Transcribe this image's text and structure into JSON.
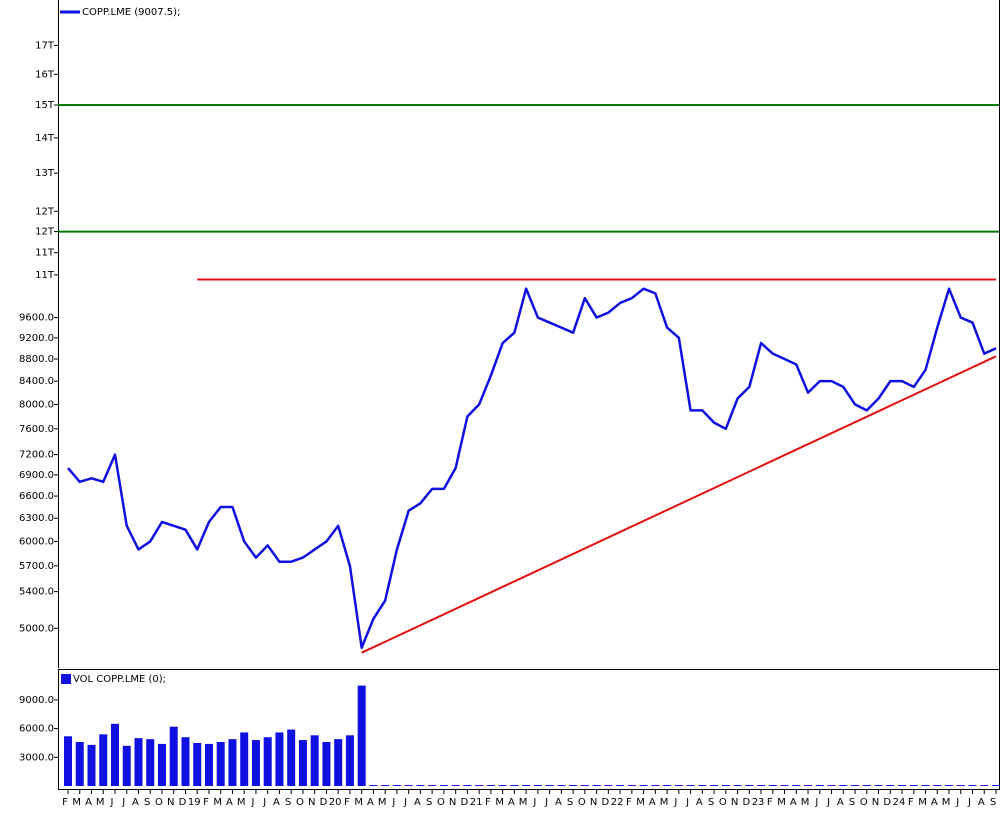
{
  "chart_data": [
    {
      "type": "line",
      "legend": "COPP.LME (9007.5);",
      "log_y": true,
      "categories": [
        "F",
        "M",
        "A",
        "M",
        "J",
        "J",
        "A",
        "S",
        "O",
        "N",
        "D",
        "19",
        "F",
        "M",
        "A",
        "M",
        "J",
        "J",
        "A",
        "S",
        "O",
        "N",
        "D",
        "20",
        "F",
        "M",
        "A",
        "M",
        "J",
        "J",
        "A",
        "S",
        "O",
        "N",
        "D",
        "21",
        "F",
        "M",
        "A",
        "M",
        "J",
        "J",
        "A",
        "S",
        "O",
        "N",
        "D",
        "22",
        "F",
        "M",
        "A",
        "M",
        "J",
        "J",
        "A",
        "S",
        "O",
        "N",
        "D",
        "23",
        "F",
        "M",
        "A",
        "M",
        "J",
        "J",
        "A",
        "S",
        "O",
        "N",
        "D",
        "24",
        "F",
        "M",
        "A",
        "M",
        "J",
        "J",
        "A",
        "S"
      ],
      "series": [
        {
          "name": "COPP.LME",
          "color": "#1010e0",
          "values": [
            7000,
            6800,
            6850,
            6800,
            7200,
            6200,
            5900,
            6000,
            6250,
            6200,
            6150,
            5900,
            6250,
            6450,
            6450,
            6000,
            5800,
            5950,
            5750,
            5750,
            5800,
            5900,
            6000,
            6200,
            5700,
            4800,
            5100,
            5300,
            5900,
            6400,
            6500,
            6700,
            6700,
            7000,
            7800,
            8000,
            8500,
            9100,
            9300,
            10200,
            9600,
            9500,
            9400,
            9300,
            10000,
            9600,
            9700,
            9900,
            10000,
            10200,
            10100,
            9400,
            9200,
            7900,
            7900,
            7700,
            7600,
            8100,
            8300,
            9100,
            8900,
            8800,
            8700,
            8200,
            8400,
            8400,
            8300,
            8000,
            7900,
            8100,
            8400,
            8400,
            8300,
            8600,
            9400,
            10200,
            9600,
            9500,
            8900,
            9000
          ]
        }
      ],
      "hlines": [
        {
          "value": 15000,
          "color": "#007a00"
        },
        {
          "value": 11500,
          "color": "#007a00"
        }
      ],
      "segments": [
        {
          "start": 11,
          "end": 79,
          "values": [
            10400,
            10400
          ],
          "color": "#e01010"
        },
        {
          "start": 25,
          "end": 79,
          "values": [
            4750,
            8850
          ],
          "color": "#e01010"
        }
      ],
      "ylim": [
        4600,
        18700
      ],
      "yticks": [
        {
          "value": 5000,
          "label": "5000.0"
        },
        {
          "value": 5400,
          "label": "5400.0"
        },
        {
          "value": 5700,
          "label": "5700.0"
        },
        {
          "value": 6000,
          "label": "6000.0"
        },
        {
          "value": 6300,
          "label": "6300.0"
        },
        {
          "value": 6600,
          "label": "6600.0"
        },
        {
          "value": 6900,
          "label": "6900.0"
        },
        {
          "value": 7200,
          "label": "7200.0"
        },
        {
          "value": 7600,
          "label": "7600.0"
        },
        {
          "value": 8000,
          "label": "8000.0"
        },
        {
          "value": 8400,
          "label": "8400.0"
        },
        {
          "value": 8800,
          "label": "8800.0"
        },
        {
          "value": 9200,
          "label": "9200.0"
        },
        {
          "value": 9600,
          "label": "9600.0"
        },
        {
          "value": 10500,
          "label": "11T"
        },
        {
          "value": 11000,
          "label": "11T"
        },
        {
          "value": 11500,
          "label": "12T"
        },
        {
          "value": 12000,
          "label": "12T"
        },
        {
          "value": 13000,
          "label": "13T"
        },
        {
          "value": 14000,
          "label": "14T"
        },
        {
          "value": 15000,
          "label": "15T"
        },
        {
          "value": 16000,
          "label": "16T"
        },
        {
          "value": 17000,
          "label": "17T"
        }
      ]
    },
    {
      "type": "bar",
      "legend": "VOL COPP.LME (0);",
      "color": "#1010e0",
      "values": [
        5200,
        4600,
        4300,
        5400,
        6500,
        4200,
        5000,
        4900,
        4400,
        6200,
        5100,
        4500,
        4400,
        4600,
        4900,
        5600,
        4800,
        5100,
        5600,
        5900,
        4800,
        5300,
        4600,
        4900,
        5300,
        10500,
        100,
        100,
        100,
        100,
        100,
        100,
        100,
        100,
        100,
        100,
        100,
        100,
        100,
        100,
        100,
        100,
        100,
        100,
        100,
        100,
        100,
        100,
        100,
        100,
        100,
        100,
        100,
        100,
        100,
        100,
        100,
        100,
        100,
        100,
        100,
        100,
        100,
        100,
        100,
        100,
        100,
        100,
        100,
        100,
        100,
        100,
        100,
        100,
        100,
        100,
        100,
        100,
        100,
        100
      ],
      "ylim": [
        0,
        11500
      ],
      "yticks": [
        {
          "value": 3000,
          "label": "3000.0"
        },
        {
          "value": 6000,
          "label": "6000.0"
        },
        {
          "value": 9000,
          "label": "9000.0"
        }
      ]
    }
  ]
}
